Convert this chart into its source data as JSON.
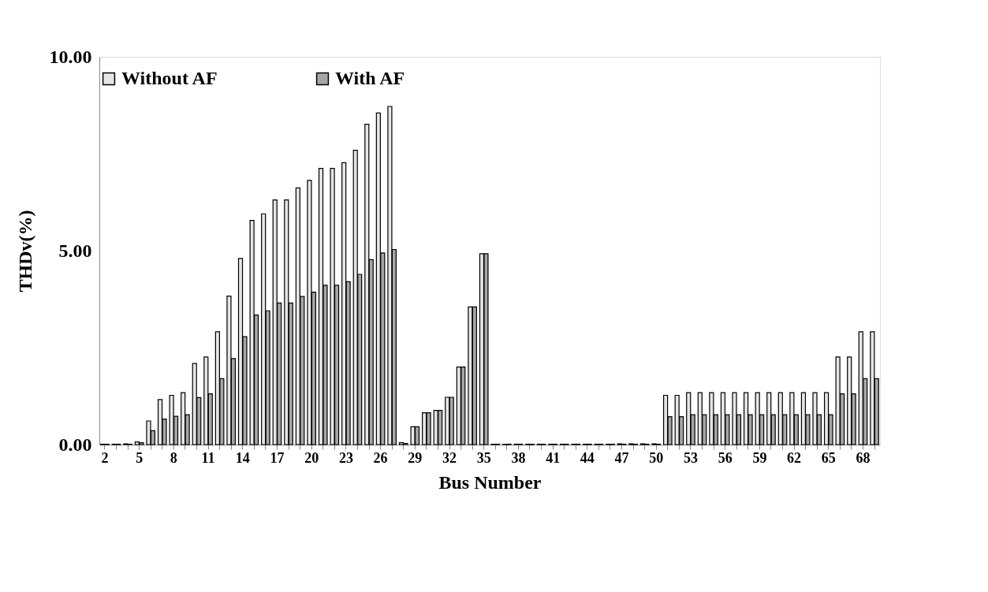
{
  "chart_data": {
    "type": "bar",
    "xlabel": "Bus Number",
    "ylabel": "THDv(%)",
    "categories": [
      "2",
      null,
      null,
      "5",
      null,
      null,
      "8",
      null,
      null,
      "11",
      null,
      null,
      "14",
      null,
      null,
      "17",
      null,
      null,
      "20",
      null,
      null,
      "23",
      null,
      null,
      "26",
      null,
      null,
      "29",
      null,
      null,
      "32",
      null,
      null,
      "35",
      null,
      null,
      "38",
      null,
      null,
      "41",
      null,
      null,
      "44",
      null,
      null,
      "47",
      null,
      null,
      "50",
      null,
      null,
      "53",
      null,
      null,
      "56",
      null,
      null,
      "59",
      null,
      null,
      "62",
      null,
      null,
      "65",
      null,
      null,
      "68",
      null
    ],
    "series": [
      {
        "name": "Without AF",
        "color": "#e6e6e6",
        "values": [
          0.01,
          0.01,
          0.02,
          0.07,
          0.61,
          1.16,
          1.27,
          1.34,
          2.09,
          2.26,
          2.91,
          3.83,
          4.8,
          5.78,
          5.95,
          6.31,
          6.31,
          6.62,
          6.81,
          7.12,
          7.12,
          7.27,
          7.59,
          8.26,
          8.55,
          8.72,
          0.05,
          0.46,
          0.82,
          0.88,
          1.22,
          2.0,
          3.55,
          4.92,
          0.01,
          0.01,
          0.01,
          0.01,
          0.01,
          0.01,
          0.01,
          0.01,
          0.01,
          0.01,
          0.01,
          0.02,
          0.02,
          0.02,
          0.02,
          1.27,
          1.27,
          1.34,
          1.34,
          1.34,
          1.34,
          1.34,
          1.34,
          1.34,
          1.34,
          1.34,
          1.34,
          1.34,
          1.34,
          1.34,
          2.26,
          2.26,
          2.91,
          2.91
        ]
      },
      {
        "name": "With AF",
        "color": "#a6a6a6",
        "values": [
          0.01,
          0.01,
          0.01,
          0.05,
          0.36,
          0.66,
          0.73,
          0.77,
          1.21,
          1.31,
          1.7,
          2.22,
          2.78,
          3.34,
          3.45,
          3.65,
          3.65,
          3.82,
          3.93,
          4.11,
          4.11,
          4.2,
          4.39,
          4.77,
          4.94,
          5.03,
          0.03,
          0.46,
          0.82,
          0.88,
          1.22,
          2.0,
          3.55,
          4.92,
          0.01,
          0.01,
          0.01,
          0.01,
          0.01,
          0.01,
          0.01,
          0.01,
          0.01,
          0.01,
          0.01,
          0.01,
          0.01,
          0.01,
          0.01,
          0.72,
          0.72,
          0.77,
          0.77,
          0.77,
          0.77,
          0.77,
          0.77,
          0.77,
          0.77,
          0.77,
          0.77,
          0.77,
          0.77,
          0.77,
          1.31,
          1.31,
          1.7,
          1.7
        ]
      }
    ],
    "ylim": [
      0,
      10
    ],
    "yticks": [
      {
        "value": 0,
        "label": "0.00"
      },
      {
        "value": 5,
        "label": "5.00"
      },
      {
        "value": 10,
        "label": "10.00"
      }
    ],
    "grid": false,
    "legend": "top"
  }
}
